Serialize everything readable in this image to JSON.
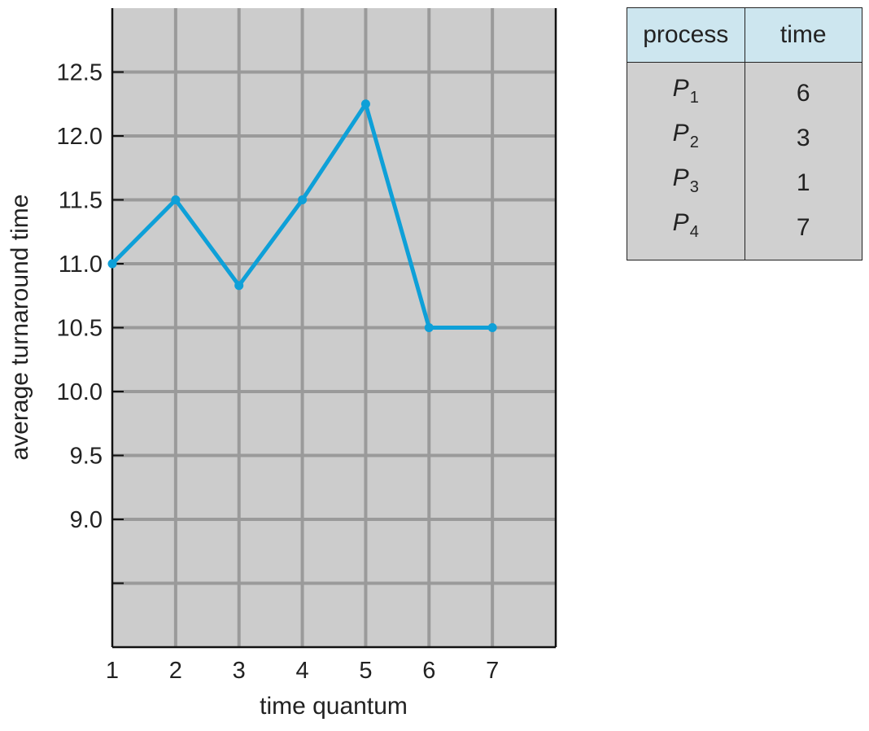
{
  "chart_data": {
    "type": "line",
    "title": "",
    "xlabel": "time quantum",
    "ylabel": "average turnaround time",
    "x": [
      1,
      2,
      3,
      4,
      5,
      6,
      7
    ],
    "series": [
      {
        "values": [
          11.0,
          11.5,
          10.83,
          11.5,
          12.25,
          10.5,
          10.5
        ]
      }
    ],
    "xlim": [
      1,
      8
    ],
    "ylim": [
      8.0,
      13.0
    ],
    "x_ticks": [
      1,
      2,
      3,
      4,
      5,
      6,
      7
    ],
    "x_tick_labels": [
      "1",
      "2",
      "3",
      "4",
      "5",
      "6",
      "7"
    ],
    "y_ticks": [
      9.0,
      9.5,
      10.0,
      10.5,
      11.0,
      11.5,
      12.0,
      12.5
    ],
    "y_tick_labels": [
      "9.0",
      "9.5",
      "10.0",
      "10.5",
      "11.0",
      "11.5",
      "12.0",
      "12.5"
    ],
    "grid": true,
    "colors": {
      "line": "#0ea0d8",
      "plot_bg": "#cccccc",
      "grid": "#9a9a9a"
    }
  },
  "table": {
    "headers": [
      "process",
      "time"
    ],
    "rows": [
      {
        "process": "P",
        "sub": "1",
        "time": "6"
      },
      {
        "process": "P",
        "sub": "2",
        "time": "3"
      },
      {
        "process": "P",
        "sub": "3",
        "time": "1"
      },
      {
        "process": "P",
        "sub": "4",
        "time": "7"
      }
    ],
    "colors": {
      "header_bg": "#cde6ef",
      "body_bg": "#d0d0d0"
    }
  }
}
